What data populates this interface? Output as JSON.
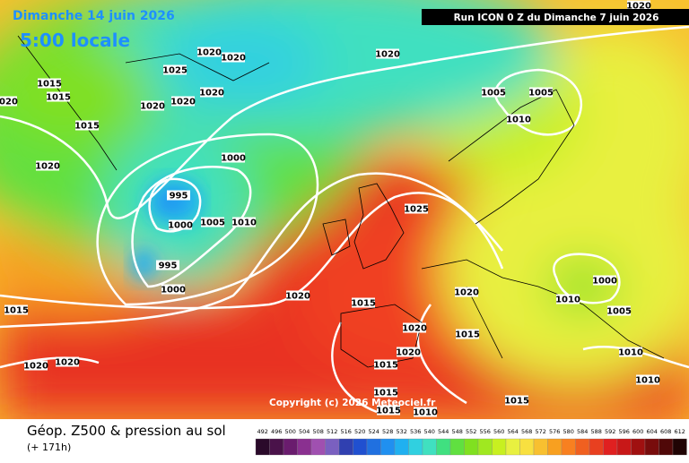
{
  "header": {
    "valid_date": "Dimanche 14 juin 2026",
    "local_time": "5:00 locale",
    "run": "Run ICON 0 Z du Dimanche 7 juin 2026"
  },
  "copyright": "Copyright (c) 2026 Meteociel.fr",
  "footer": {
    "title": "Géop. Z500 & pression au sol",
    "lead": "(+ 171h)"
  },
  "isobar_labels": [
    "1020",
    "1020",
    "1020",
    "1020",
    "1025",
    "1015",
    "1015",
    "1020",
    "1020",
    "1020",
    "1020",
    "1005",
    "1005",
    "1010",
    "1015",
    "1000",
    "1020",
    "995",
    "1000",
    "1005",
    "1010",
    "1025",
    "995",
    "1000",
    "1000",
    "1020",
    "1020",
    "1010",
    "1015",
    "1015",
    "1005",
    "1020",
    "1015",
    "1020",
    "1010",
    "1020",
    "1020",
    "1015",
    "1010",
    "1015",
    "1015",
    "1015",
    "1010"
  ],
  "colorbar": {
    "ticks": [
      492,
      496,
      500,
      504,
      508,
      512,
      516,
      520,
      524,
      528,
      532,
      536,
      540,
      544,
      548,
      552,
      556,
      560,
      564,
      568,
      572,
      576,
      580,
      584,
      588,
      592,
      596,
      600,
      604,
      608,
      612
    ],
    "colors": [
      "#2a0a2a",
      "#4a124a",
      "#6a1c6e",
      "#8a3090",
      "#a050b0",
      "#7a60c0",
      "#3040b0",
      "#2050d0",
      "#2070e0",
      "#2090f0",
      "#20b0f0",
      "#30d0e0",
      "#40e0c0",
      "#40e080",
      "#60e040",
      "#80e020",
      "#a0e820",
      "#c8f020",
      "#e8f040",
      "#f8e040",
      "#f8c030",
      "#f8a020",
      "#f88020",
      "#f06020",
      "#e84020",
      "#e02020",
      "#c81818",
      "#a01010",
      "#780c0c",
      "#500808",
      "#200404"
    ]
  }
}
